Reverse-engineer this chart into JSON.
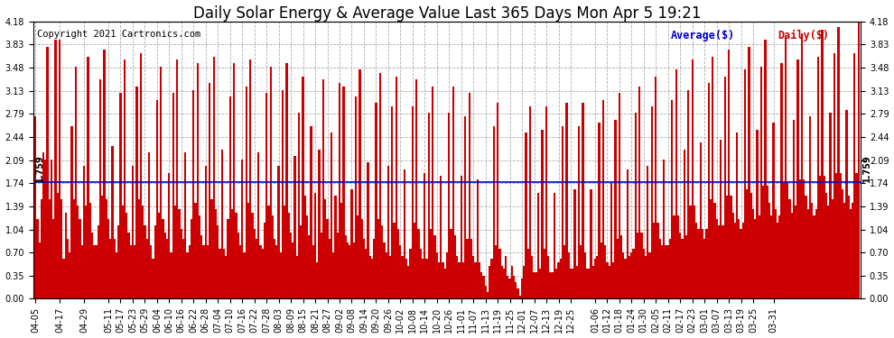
{
  "title": "Daily Solar Energy & Average Value Last 365 Days Mon Apr 5 19:21",
  "copyright": "Copyright 2021 Cartronics.com",
  "average_label": "Average($)",
  "daily_label": "Daily($)",
  "average_value": 1.759,
  "ylim": [
    0.0,
    4.18
  ],
  "yticks": [
    0.0,
    0.35,
    0.7,
    1.04,
    1.39,
    1.74,
    2.09,
    2.44,
    2.79,
    3.13,
    3.48,
    3.83,
    4.18
  ],
  "bar_color": "#cc0000",
  "avg_line_color": "#0000cc",
  "bg_color": "#ffffff",
  "grid_color": "#999999",
  "title_color": "#000000",
  "title_fontsize": 12,
  "copyright_fontsize": 7.5,
  "tick_fontsize": 7,
  "values": [
    2.75,
    1.2,
    0.85,
    1.5,
    2.2,
    2.1,
    3.8,
    1.5,
    2.1,
    1.2,
    3.9,
    1.6,
    3.9,
    1.5,
    0.6,
    1.3,
    0.9,
    0.7,
    2.6,
    1.5,
    3.5,
    1.4,
    1.2,
    0.8,
    2.0,
    1.4,
    3.65,
    1.45,
    1.0,
    0.8,
    0.8,
    1.1,
    3.3,
    1.55,
    3.75,
    1.5,
    1.2,
    0.9,
    2.3,
    0.9,
    0.7,
    1.1,
    3.1,
    1.4,
    3.6,
    1.3,
    1.0,
    0.8,
    2.0,
    0.8,
    3.2,
    1.5,
    3.7,
    1.4,
    1.1,
    0.9,
    2.2,
    0.8,
    0.6,
    1.1,
    3.0,
    1.3,
    3.5,
    1.2,
    1.0,
    0.9,
    1.9,
    0.7,
    3.1,
    1.4,
    3.6,
    1.35,
    1.05,
    0.9,
    2.2,
    0.7,
    0.8,
    1.2,
    3.15,
    1.45,
    3.55,
    1.25,
    0.95,
    0.8,
    2.0,
    0.8,
    3.25,
    1.5,
    3.65,
    1.35,
    1.1,
    0.75,
    2.25,
    0.75,
    0.65,
    1.2,
    3.05,
    1.35,
    3.55,
    1.3,
    1.0,
    0.8,
    2.1,
    0.7,
    3.2,
    1.45,
    3.6,
    1.3,
    1.05,
    0.9,
    2.2,
    0.8,
    0.75,
    1.15,
    3.1,
    1.4,
    3.5,
    1.25,
    0.9,
    0.8,
    2.0,
    0.7,
    3.15,
    1.4,
    3.55,
    1.3,
    1.0,
    0.85,
    2.15,
    0.65,
    2.8,
    1.1,
    3.35,
    1.55,
    1.25,
    0.95,
    2.6,
    0.8,
    1.6,
    0.55,
    2.25,
    1.0,
    3.3,
    1.5,
    1.2,
    0.9,
    2.5,
    0.7,
    1.55,
    1.0,
    3.25,
    1.45,
    3.2,
    0.95,
    0.85,
    0.8,
    1.65,
    0.85,
    3.05,
    1.25,
    3.45,
    1.2,
    0.9,
    0.75,
    2.05,
    0.65,
    0.6,
    0.9,
    2.95,
    1.2,
    3.4,
    1.1,
    0.85,
    0.7,
    2.0,
    0.65,
    2.9,
    1.15,
    3.35,
    1.05,
    0.8,
    0.65,
    1.95,
    0.6,
    0.5,
    0.75,
    2.9,
    1.15,
    3.3,
    1.05,
    0.75,
    0.6,
    1.9,
    0.6,
    2.8,
    1.05,
    3.2,
    0.95,
    0.7,
    0.55,
    1.85,
    0.55,
    0.45,
    0.7,
    2.8,
    1.05,
    3.2,
    0.95,
    0.65,
    0.55,
    1.85,
    0.55,
    2.75,
    0.9,
    3.1,
    0.9,
    0.65,
    0.55,
    1.8,
    0.55,
    0.4,
    0.35,
    0.2,
    0.1,
    0.5,
    0.6,
    2.6,
    0.8,
    2.95,
    0.75,
    0.5,
    0.45,
    0.65,
    0.35,
    0.3,
    0.5,
    0.35,
    0.25,
    0.15,
    0.05,
    0.3,
    0.5,
    2.5,
    0.75,
    2.9,
    0.65,
    0.4,
    0.4,
    1.6,
    0.45,
    2.55,
    0.75,
    2.9,
    0.65,
    0.4,
    0.4,
    1.6,
    0.45,
    0.55,
    0.6,
    2.6,
    0.8,
    2.95,
    0.7,
    0.45,
    0.45,
    1.65,
    0.5,
    2.6,
    0.8,
    2.95,
    0.7,
    0.45,
    0.45,
    1.65,
    0.5,
    0.6,
    0.65,
    2.65,
    0.85,
    3.0,
    0.8,
    0.55,
    0.5,
    1.75,
    0.55,
    2.7,
    0.9,
    3.1,
    0.95,
    0.7,
    0.6,
    1.95,
    0.65,
    0.7,
    0.75,
    2.8,
    1.0,
    3.2,
    1.0,
    0.75,
    0.65,
    2.0,
    0.7,
    2.9,
    1.15,
    3.35,
    1.15,
    0.9,
    0.8,
    2.1,
    0.8,
    0.8,
    0.9,
    3.0,
    1.25,
    3.45,
    1.25,
    1.0,
    0.9,
    2.25,
    0.95,
    3.15,
    1.4,
    3.6,
    1.4,
    1.15,
    1.05,
    2.35,
    1.05,
    0.9,
    1.05,
    3.25,
    1.5,
    3.65,
    1.45,
    1.2,
    1.1,
    2.4,
    1.1,
    3.35,
    1.55,
    3.75,
    1.55,
    1.3,
    1.15,
    2.5,
    1.2,
    1.05,
    1.15,
    3.45,
    1.65,
    3.8,
    1.6,
    1.35,
    1.2,
    2.55,
    1.25,
    3.5,
    1.7,
    3.9,
    1.7,
    1.45,
    1.25,
    2.65,
    1.35,
    1.15,
    1.25,
    3.55,
    1.75,
    3.95,
    1.75,
    1.5,
    1.3,
    2.7,
    1.4,
    3.6,
    1.8,
    4.0,
    1.8,
    1.55,
    1.35,
    2.75,
    1.45,
    1.25,
    1.35,
    3.65,
    1.85,
    4.05,
    1.85,
    1.6,
    1.4,
    2.8,
    1.5,
    3.7,
    1.9,
    4.1,
    1.9,
    1.65,
    1.45,
    2.85,
    1.55,
    1.35,
    1.45,
    3.7,
    1.9,
    4.18
  ],
  "x_tick_positions": [
    0,
    12,
    24,
    36,
    42,
    48,
    54,
    60,
    66,
    72,
    78,
    84,
    90,
    96,
    102,
    108,
    114,
    120,
    126,
    132,
    138,
    144,
    150,
    156,
    162,
    168,
    174,
    180,
    186,
    192,
    198,
    204,
    210,
    216,
    222,
    228,
    234,
    240,
    246,
    252,
    258,
    264,
    276,
    282,
    288,
    294,
    300,
    306,
    312,
    318,
    324,
    330,
    336,
    342,
    348,
    354,
    364
  ],
  "x_tick_labels": [
    "04-05",
    "04-17",
    "04-29",
    "05-11",
    "05-17",
    "05-23",
    "05-29",
    "06-04",
    "06-10",
    "06-16",
    "06-22",
    "06-28",
    "07-04",
    "07-10",
    "07-16",
    "07-22",
    "07-28",
    "08-03",
    "08-09",
    "08-15",
    "08-21",
    "08-27",
    "09-02",
    "09-08",
    "09-14",
    "09-20",
    "09-26",
    "10-02",
    "10-08",
    "10-14",
    "10-20",
    "10-26",
    "11-01",
    "11-07",
    "11-13",
    "11-19",
    "11-25",
    "12-01",
    "12-07",
    "12-13",
    "12-19",
    "12-25",
    "01-06",
    "01-12",
    "01-18",
    "01-24",
    "01-30",
    "02-05",
    "02-11",
    "02-17",
    "02-23",
    "03-01",
    "03-07",
    "03-13",
    "03-19",
    "03-25",
    "03-31"
  ]
}
